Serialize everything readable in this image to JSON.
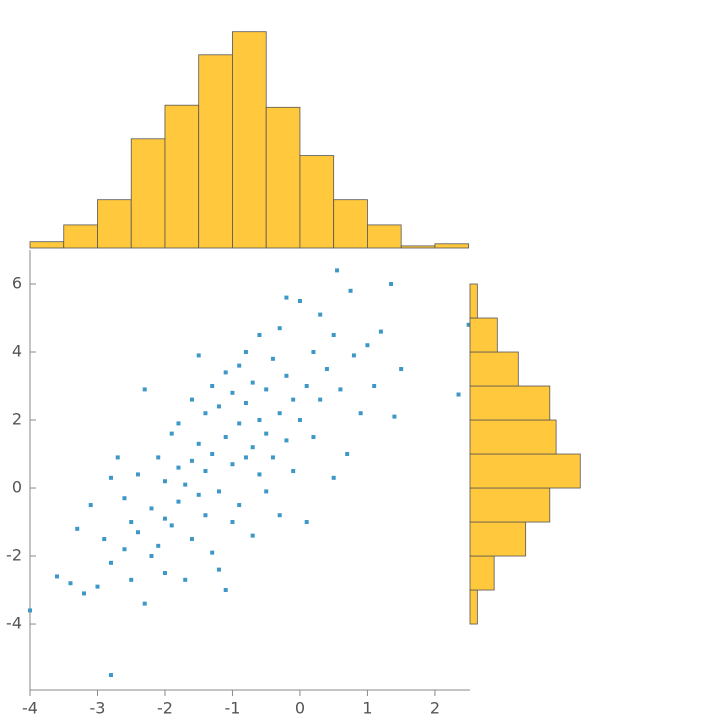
{
  "chart_data": [
    {
      "type": "scatter",
      "color": "#3d98c8",
      "x": [
        -3.6,
        -3.4,
        -3.3,
        -3.2,
        -3.1,
        -3.0,
        -2.9,
        -2.8,
        -2.8,
        -2.7,
        -2.6,
        -2.6,
        -2.5,
        -2.5,
        -2.4,
        -2.4,
        -2.3,
        -2.3,
        -2.2,
        -2.2,
        -2.1,
        -2.1,
        -2.0,
        -2.0,
        -2.0,
        -1.9,
        -1.9,
        -1.8,
        -1.8,
        -1.8,
        -1.7,
        -1.7,
        -1.6,
        -1.6,
        -1.6,
        -1.5,
        -1.5,
        -1.5,
        -1.4,
        -1.4,
        -1.4,
        -1.3,
        -1.3,
        -1.3,
        -1.2,
        -1.2,
        -1.2,
        -1.1,
        -1.1,
        -1.1,
        -1.0,
        -1.0,
        -1.0,
        -0.9,
        -0.9,
        -0.9,
        -0.8,
        -0.8,
        -0.8,
        -0.7,
        -0.7,
        -0.7,
        -0.6,
        -0.6,
        -0.6,
        -0.5,
        -0.5,
        -0.5,
        -0.4,
        -0.4,
        -0.3,
        -0.3,
        -0.3,
        -0.2,
        -0.2,
        -0.1,
        -0.1,
        0.0,
        0.0,
        0.1,
        0.1,
        0.2,
        0.2,
        0.3,
        0.3,
        0.4,
        0.5,
        0.5,
        0.6,
        0.7,
        0.8,
        0.9,
        1.0,
        1.1,
        1.2,
        1.4,
        1.5,
        -2.8,
        -4.0,
        2.5,
        2.35,
        0.55,
        1.35,
        0.75,
        -0.2
      ],
      "y": [
        -2.6,
        -2.8,
        -1.2,
        -3.1,
        -0.5,
        -2.9,
        -1.5,
        0.3,
        -2.2,
        0.9,
        -0.3,
        -1.8,
        -1.0,
        -2.7,
        0.4,
        -1.3,
        -3.4,
        2.9,
        -0.6,
        -2.0,
        0.9,
        -1.7,
        0.2,
        -0.9,
        -2.5,
        1.6,
        -1.1,
        0.6,
        -0.4,
        1.9,
        -2.7,
        0.1,
        2.6,
        -1.5,
        0.8,
        3.9,
        -0.2,
        1.3,
        2.2,
        -0.8,
        0.5,
        3.0,
        -1.9,
        1.0,
        2.4,
        -0.1,
        -2.4,
        1.5,
        3.4,
        -3.0,
        0.7,
        2.8,
        -1.0,
        1.9,
        3.6,
        -0.5,
        0.9,
        2.5,
        4.0,
        1.2,
        -1.4,
        3.1,
        2.0,
        0.4,
        4.5,
        1.6,
        2.9,
        -0.1,
        3.8,
        0.9,
        2.2,
        4.7,
        -0.8,
        1.4,
        3.3,
        2.6,
        0.5,
        5.5,
        2.0,
        3.0,
        -1.0,
        4.0,
        1.5,
        2.6,
        5.1,
        3.5,
        4.5,
        0.3,
        2.9,
        1.0,
        3.9,
        2.2,
        4.2,
        3.0,
        4.6,
        2.1,
        3.5,
        -5.5,
        -3.6,
        4.8,
        2.75,
        6.4,
        6.0,
        5.8,
        5.6
      ],
      "xlim": [
        -4,
        2.52
      ],
      "ylim": [
        -5.94,
        7
      ],
      "xticks": [
        -4,
        -3,
        -2,
        -1,
        0,
        1,
        2
      ],
      "yticks": [
        -4,
        -2,
        0,
        2,
        4,
        6
      ]
    },
    {
      "type": "histogram",
      "orientation": "vertical",
      "color": "#ffc83d",
      "bins": [
        -4,
        -3.5,
        -3,
        -2.5,
        -2,
        -1.5,
        -1,
        -0.5,
        0,
        0.5,
        1,
        1.5,
        2,
        2.5
      ],
      "values": [
        3,
        11,
        23,
        52,
        68,
        92,
        103,
        67,
        44,
        23,
        11,
        1,
        2
      ]
    },
    {
      "type": "histogram",
      "orientation": "horizontal",
      "color": "#ffc83d",
      "bins": [
        -4,
        -3,
        -2,
        -1,
        0,
        1,
        2,
        3,
        4,
        5,
        6
      ],
      "values": [
        7,
        23,
        53,
        76,
        105,
        82,
        76,
        46,
        26,
        7
      ]
    }
  ]
}
